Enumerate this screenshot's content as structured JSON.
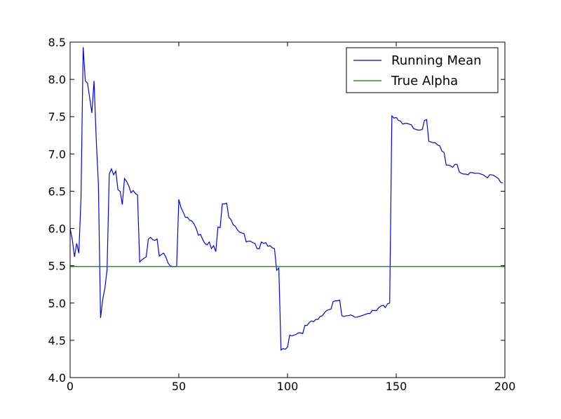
{
  "chart_data": {
    "type": "line",
    "xlim": [
      0,
      200
    ],
    "xticks": [
      0,
      50,
      100,
      150,
      200
    ],
    "ylim": [
      4,
      8.5
    ],
    "yticks": [
      {
        "value": 4,
        "label": "4.0"
      },
      4.5,
      {
        "value": 5,
        "label": "5.0"
      },
      5.5,
      {
        "value": 6,
        "label": "6.0"
      },
      6.5,
      {
        "value": 7,
        "label": "7.0"
      },
      7.5,
      {
        "value": 8,
        "label": "8.0"
      },
      8.5
    ],
    "legend": "upper right",
    "series": [
      {
        "name": "Running Mean",
        "color": "#0000ff",
        "x": [
          0,
          1,
          2,
          3,
          4,
          5,
          6,
          7,
          8,
          9,
          10,
          11,
          12,
          13,
          14,
          15,
          16,
          17,
          18,
          19,
          20,
          21,
          22,
          23,
          24,
          25,
          26,
          27,
          28,
          29,
          30,
          31,
          32,
          33,
          34,
          35,
          36,
          37,
          38,
          39,
          40,
          41,
          42,
          43,
          44,
          45,
          46,
          47,
          48,
          49,
          50,
          51,
          52,
          53,
          54,
          55,
          56,
          57,
          58,
          59,
          60,
          61,
          62,
          63,
          64,
          65,
          66,
          67,
          68,
          69,
          70,
          71,
          72,
          73,
          74,
          75,
          76,
          77,
          78,
          79,
          80,
          81,
          82,
          83,
          84,
          85,
          86,
          87,
          88,
          89,
          90,
          91,
          92,
          93,
          94,
          95,
          96,
          97,
          98,
          99,
          100,
          101,
          102,
          103,
          104,
          105,
          106,
          107,
          108,
          109,
          110,
          111,
          112,
          113,
          114,
          115,
          116,
          117,
          118,
          119,
          120,
          121,
          122,
          123,
          124,
          125,
          126,
          127,
          128,
          129,
          130,
          131,
          132,
          133,
          134,
          135,
          136,
          137,
          138,
          139,
          140,
          141,
          142,
          143,
          144,
          145,
          146,
          147,
          148,
          149,
          150,
          151,
          152,
          153,
          154,
          155,
          156,
          157,
          158,
          159,
          160,
          161,
          162,
          163,
          164,
          165,
          166,
          167,
          168,
          169,
          170,
          171,
          172,
          173,
          174,
          175,
          176,
          177,
          178,
          179,
          180,
          181,
          182,
          183,
          184,
          185,
          186,
          187,
          188,
          189,
          190,
          191,
          192,
          193,
          194,
          195,
          196,
          197,
          198,
          199
        ],
        "values": [
          6.0,
          5.85,
          5.62,
          5.8,
          5.67,
          6.4,
          8.43,
          7.98,
          7.95,
          7.75,
          7.55,
          7.98,
          7.2,
          6.6,
          4.8,
          5.05,
          5.2,
          5.45,
          6.73,
          6.8,
          6.72,
          6.77,
          6.52,
          6.5,
          6.32,
          6.67,
          6.63,
          6.57,
          6.48,
          6.51,
          6.47,
          6.45,
          5.55,
          5.58,
          5.6,
          5.62,
          5.86,
          5.88,
          5.85,
          5.84,
          5.86,
          5.63,
          5.65,
          5.67,
          5.62,
          5.54,
          5.5,
          5.49,
          5.49,
          5.49,
          6.39,
          6.28,
          6.22,
          6.15,
          6.15,
          6.11,
          6.1,
          6.06,
          6.0,
          5.91,
          5.92,
          5.85,
          5.8,
          5.78,
          5.82,
          5.73,
          5.77,
          5.69,
          6.02,
          6.01,
          6.33,
          6.33,
          6.34,
          6.15,
          6.12,
          6.05,
          6.03,
          5.98,
          5.95,
          5.94,
          5.93,
          5.82,
          5.83,
          5.83,
          5.81,
          5.8,
          5.73,
          5.73,
          5.82,
          5.8,
          5.81,
          5.76,
          5.77,
          5.74,
          5.73,
          5.44,
          5.47,
          4.37,
          4.39,
          4.38,
          4.41,
          4.57,
          4.56,
          4.57,
          4.58,
          4.6,
          4.6,
          4.59,
          4.7,
          4.7,
          4.74,
          4.76,
          4.75,
          4.78,
          4.78,
          4.82,
          4.83,
          4.87,
          4.9,
          4.91,
          4.92,
          5.02,
          5.03,
          5.03,
          5.04,
          4.83,
          4.82,
          4.83,
          4.83,
          4.84,
          4.83,
          4.81,
          4.81,
          4.82,
          4.83,
          4.84,
          4.85,
          4.86,
          4.86,
          4.9,
          4.9,
          4.9,
          4.94,
          4.96,
          4.97,
          4.94,
          4.99,
          5.0,
          7.51,
          7.48,
          7.49,
          7.45,
          7.44,
          7.4,
          7.41,
          7.41,
          7.4,
          7.39,
          7.34,
          7.33,
          7.32,
          7.32,
          7.33,
          7.45,
          7.46,
          7.17,
          7.16,
          7.15,
          7.15,
          7.12,
          7.11,
          7.04,
          7.02,
          6.85,
          6.85,
          6.84,
          6.82,
          6.86,
          6.86,
          6.76,
          6.74,
          6.73,
          6.73,
          6.72,
          6.75,
          6.75,
          6.74,
          6.74,
          6.74,
          6.73,
          6.72,
          6.7,
          6.68,
          6.72,
          6.72,
          6.71,
          6.69,
          6.67,
          6.62,
          6.61
        ]
      },
      {
        "name": "True Alpha",
        "color": "#008000",
        "x": [
          0,
          200
        ],
        "values": [
          5.49,
          5.49
        ]
      }
    ]
  }
}
